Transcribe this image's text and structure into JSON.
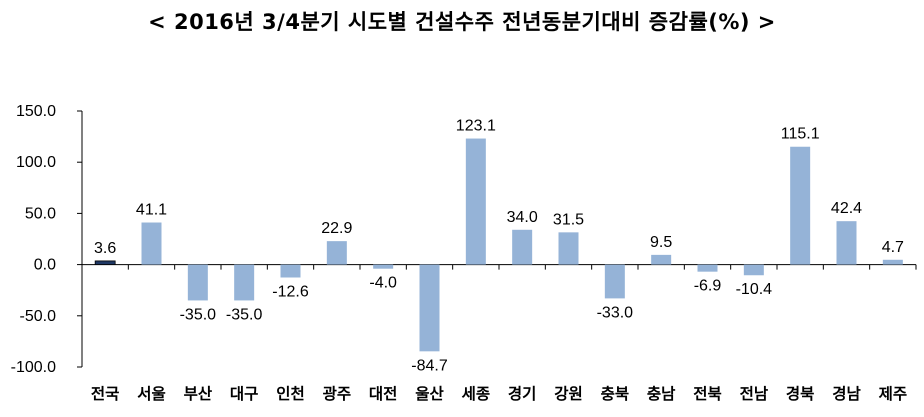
{
  "chart_data": {
    "type": "bar",
    "title": "< 2016년 3/4분기 시도별 건설수주 전년동분기대비 증감률(%) >",
    "xlabel": "",
    "ylabel": "",
    "ylim": [
      -100,
      150
    ],
    "yticks": [
      150,
      100,
      50,
      0,
      -50,
      -100
    ],
    "ytick_labels": [
      "150.0",
      "100.0",
      "50.0",
      "0.0",
      "-50.0",
      "-100.0"
    ],
    "categories": [
      "전국",
      "서울",
      "부산",
      "대구",
      "인천",
      "광주",
      "대전",
      "울산",
      "세종",
      "경기",
      "강원",
      "충북",
      "충남",
      "전북",
      "전남",
      "경북",
      "경남",
      "제주"
    ],
    "values": [
      3.6,
      41.1,
      -35.0,
      -35.0,
      -12.6,
      22.9,
      -4.0,
      -84.7,
      123.1,
      34.0,
      31.5,
      -33.0,
      9.5,
      -6.9,
      -10.4,
      115.1,
      42.4,
      4.7
    ],
    "value_labels": [
      "3.6",
      "41.1",
      "-35.0",
      "-35.0",
      "-12.6",
      "22.9",
      "-4.0",
      "-84.7",
      "123.1",
      "34.0",
      "31.5",
      "-33.0",
      "9.5",
      "-6.9",
      "-10.4",
      "115.1",
      "42.4",
      "4.7"
    ],
    "grid": false,
    "colors": {
      "bar": "#95b3d7",
      "highlight": "#1f3864",
      "axis": "#000000"
    }
  }
}
